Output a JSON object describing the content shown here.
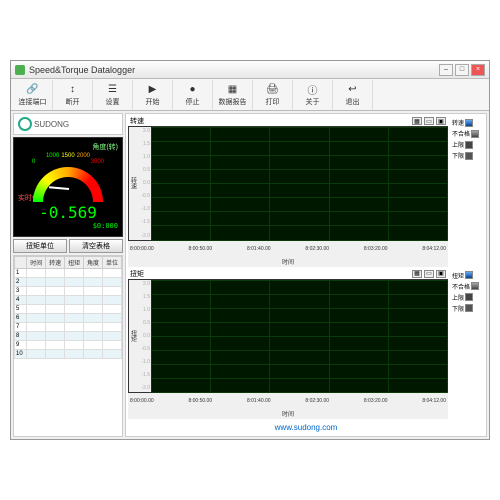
{
  "window": {
    "title": "Speed&Torque Datalogger"
  },
  "toolbar": [
    {
      "label": "连接端口",
      "icon": "🔗"
    },
    {
      "label": "断开",
      "icon": "↕"
    },
    {
      "label": "设置",
      "icon": "☰"
    },
    {
      "label": "开始",
      "icon": "▶"
    },
    {
      "label": "停止",
      "icon": "●"
    },
    {
      "label": "数据报告",
      "icon": "▦"
    },
    {
      "label": "打印",
      "icon": "🖨"
    },
    {
      "label": "关于",
      "icon": "ⓘ"
    },
    {
      "label": "退出",
      "icon": "↩"
    }
  ],
  "logo": "SUDONG",
  "gauge": {
    "title": "角度(转)",
    "scale1": [
      "1000",
      "1500",
      "2000"
    ],
    "scale2": [
      "0",
      "3000"
    ],
    "status": "实时传输",
    "value": "-0.569",
    "time": "$0:000",
    "btn1": "扭矩单位",
    "btn2": "清空表格"
  },
  "table": {
    "columns": [
      "",
      "时间",
      "转速",
      "扭矩",
      "角度",
      "单位"
    ],
    "rows": 10
  },
  "chart1": {
    "title": "转速",
    "ylabel": "转速",
    "xlabel": "时间",
    "ylim": [
      -2.0,
      2.0
    ],
    "ystep": 0.5,
    "xticks": [
      "8:00:00.00",
      "8:00:50.00",
      "8:01:40.00",
      "8:02:30.00",
      "8:03:20.00",
      "8:04:12.00"
    ],
    "legend": [
      "转速",
      "不合格",
      "上限",
      "下限"
    ],
    "grid_color": "#0a3a0a",
    "bg": "#001800"
  },
  "chart2": {
    "title": "扭矩",
    "ylabel": "扭矩",
    "xlabel": "时间",
    "ylim": [
      -2.0,
      2.0
    ],
    "ystep": 0.5,
    "xticks": [
      "8:00:00.00",
      "8:00:50.00",
      "8:01:40.00",
      "8:02:30.00",
      "8:03:20.00",
      "8:04:12.00"
    ],
    "legend": [
      "扭矩",
      "不合格",
      "上限",
      "下限"
    ],
    "grid_color": "#0a3a0a",
    "bg": "#001800"
  },
  "footer": "www.sudong.com"
}
